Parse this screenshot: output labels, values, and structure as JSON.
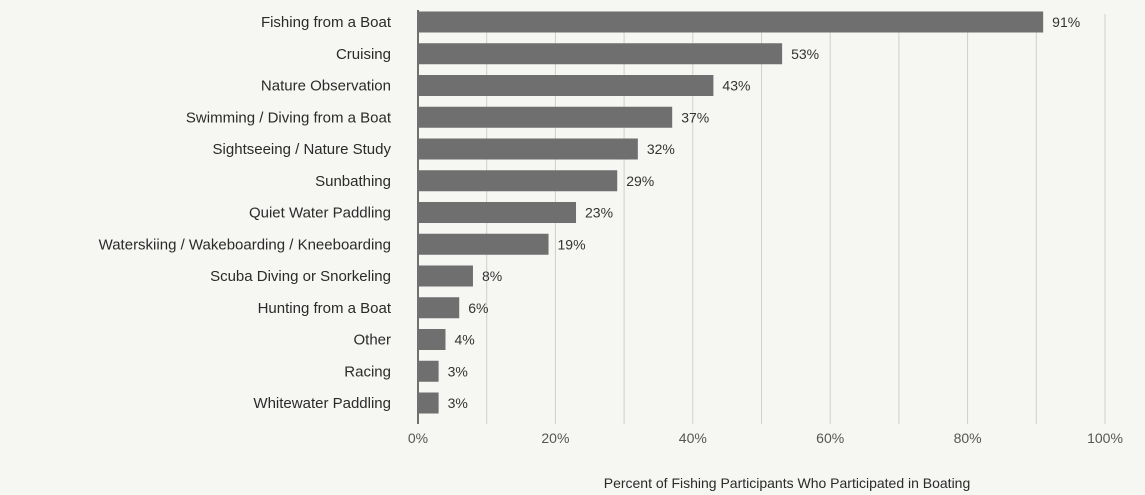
{
  "chart_data": {
    "type": "bar",
    "orientation": "horizontal",
    "categories": [
      "Fishing from a Boat",
      "Cruising",
      "Nature Observation",
      "Swimming / Diving from a Boat",
      "Sightseeing / Nature Study",
      "Sunbathing",
      "Quiet Water Paddling",
      "Waterskiing / Wakeboarding / Kneeboarding",
      "Scuba Diving or Snorkeling",
      "Hunting from a Boat",
      "Other",
      "Racing",
      "Whitewater Paddling"
    ],
    "values": [
      91,
      53,
      43,
      37,
      32,
      29,
      23,
      19,
      8,
      6,
      4,
      3,
      3
    ],
    "value_labels": [
      "91%",
      "53%",
      "43%",
      "37%",
      "32%",
      "29%",
      "23%",
      "19%",
      "8%",
      "6%",
      "4%",
      "3%",
      "3%"
    ],
    "xlabel": "Percent of Fishing Participants Who Participated in Boating",
    "ylabel": "",
    "xlim": [
      0,
      100
    ],
    "x_ticks": [
      0,
      20,
      40,
      60,
      80,
      100
    ],
    "x_tick_labels": [
      "0%",
      "20%",
      "40%",
      "60%",
      "80%",
      "100%"
    ],
    "grid": "vertical",
    "colors": {
      "bar": "#6f6f6f",
      "grid": "#cfcfcf",
      "axis": "#444444"
    }
  }
}
